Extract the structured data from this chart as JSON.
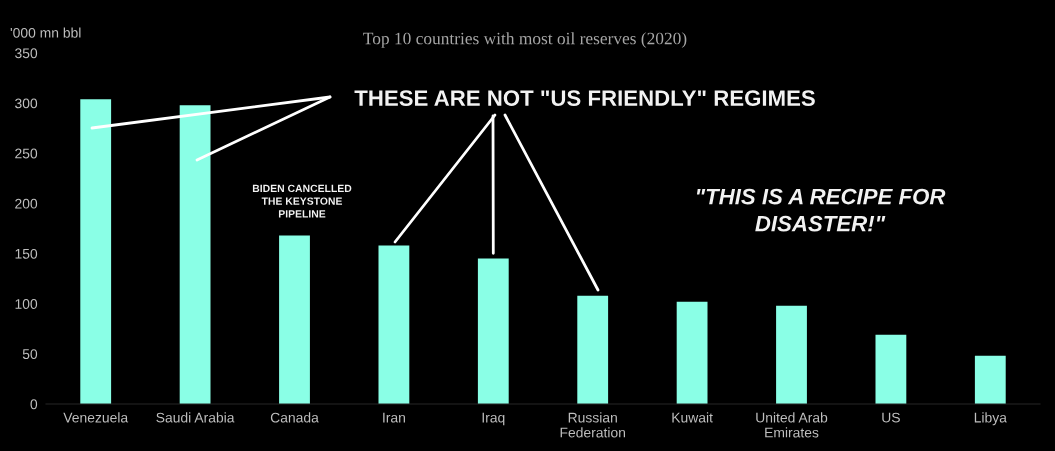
{
  "chart_data": {
    "type": "bar",
    "title": "Top 10 countries with most oil reserves (2020)",
    "ylabel": "'000 mn bbl",
    "categories": [
      "Venezuela",
      "Saudi Arabia",
      "Canada",
      "Iran",
      "Iraq",
      "Russian\nFederation",
      "Kuwait",
      "United Arab\nEmirates",
      "US",
      "Libya"
    ],
    "values": [
      304,
      298,
      168,
      158,
      145,
      108,
      102,
      98,
      69,
      48
    ],
    "color": "#8affe6",
    "ylim": [
      0,
      350
    ],
    "yticks": [
      0,
      50,
      100,
      150,
      200,
      250,
      300,
      350
    ],
    "grid": false,
    "annotations": [
      {
        "text": "THESE ARE NOT \"US FRIENDLY\" REGIMES",
        "x": "Iraq",
        "y": 145
      },
      "BIDEN CANCELLED\nTHE KEYSTONE\nPIPELINE",
      "\"THIS IS A RECIPE FOR\nDISASTER!\""
    ]
  }
}
